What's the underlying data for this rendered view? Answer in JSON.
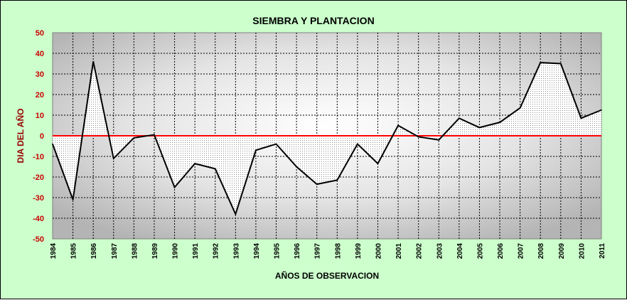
{
  "chart_data": {
    "type": "area",
    "title": "SIEMBRA Y PLANTACION",
    "xlabel": "AÑOS DE OBSERVACION",
    "ylabel": "DIA DEL AÑO",
    "ylim": [
      -50,
      50
    ],
    "yticks": [
      50,
      40,
      30,
      20,
      10,
      0,
      -10,
      -20,
      -30,
      -40,
      -50
    ],
    "grid": true,
    "legend": "none",
    "categories": [
      "1984",
      "1985",
      "1986",
      "1987",
      "1988",
      "1989",
      "1990",
      "1991",
      "1992",
      "1993",
      "1994",
      "1995",
      "1996",
      "1997",
      "1998",
      "1999",
      "2000",
      "2001",
      "2002",
      "2003",
      "2004",
      "2005",
      "2006",
      "2007",
      "2008",
      "2009",
      "2010",
      "2011"
    ],
    "series": [
      {
        "values": [
          -4,
          -31,
          36,
          -11,
          -1,
          0.5,
          -25,
          -13.5,
          -16,
          -38,
          -7,
          -4,
          -15,
          -23.5,
          -21.5,
          -4,
          -13.5,
          5,
          -0.5,
          -2,
          8.5,
          4,
          6.5,
          13.5,
          35.5,
          35,
          8.5,
          12.5
        ]
      }
    ],
    "colors": {
      "background": "#ccffcc",
      "zero_line": "#ff0000",
      "series_line": "#000000",
      "fill": "#ffffff",
      "ytick_text": "#cc0000",
      "ylabel_text": "#990000"
    }
  }
}
